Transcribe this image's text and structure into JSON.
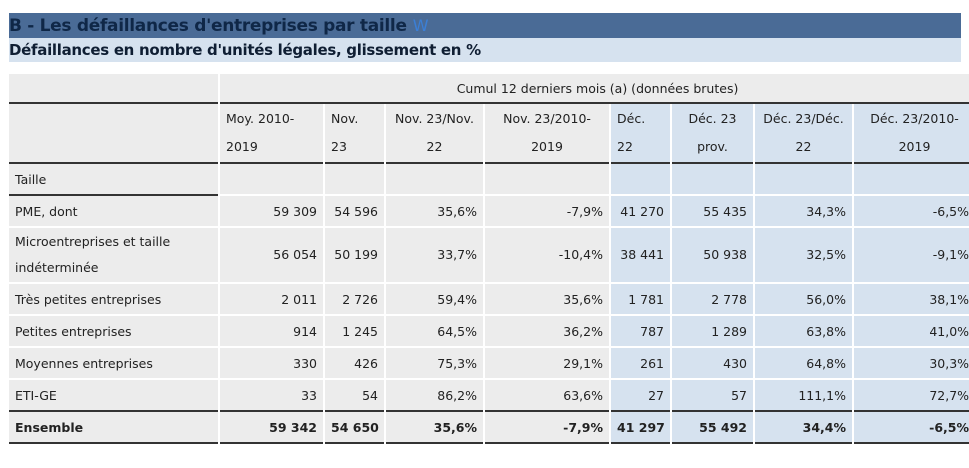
{
  "title": "B - Les défaillances d'entreprises par taille",
  "title_icon": "w-icon",
  "subtitle": "Défaillances en nombre d'unités légales, glissement en %",
  "colors": {
    "title_bg": "#4a6b96",
    "subtitle_bg": "#d6e2ef",
    "cell_bg": "#ececec",
    "highlight_bg": "#d6e2ef"
  },
  "table": {
    "group_header": "Cumul 12 derniers mois (a) (données brutes)",
    "columns": [
      "Moy. 2010-2019",
      "Nov. 23",
      "Nov. 23/Nov. 22",
      "Nov. 23/2010-2019",
      "Déc. 22",
      "Déc. 23 prov.",
      "Déc. 23/Déc. 22",
      "Déc. 23/2010-2019"
    ],
    "row_header": "Taille",
    "rows": [
      {
        "label": "PME, dont",
        "values": [
          "59 309",
          "54 596",
          "35,6%",
          "-7,9%",
          "41 270",
          "55 435",
          "34,3%",
          "-6,5%"
        ]
      },
      {
        "label": "Microentreprises et taille indéterminée",
        "values": [
          "56 054",
          "50 199",
          "33,7%",
          "-10,4%",
          "38 441",
          "50 938",
          "32,5%",
          "-9,1%"
        ]
      },
      {
        "label": "Très petites entreprises",
        "values": [
          "2 011",
          "2 726",
          "59,4%",
          "35,6%",
          "1 781",
          "2 778",
          "56,0%",
          "38,1%"
        ]
      },
      {
        "label": "Petites entreprises",
        "values": [
          "914",
          "1 245",
          "64,5%",
          "36,2%",
          "787",
          "1 289",
          "63,8%",
          "41,0%"
        ]
      },
      {
        "label": "Moyennes entreprises",
        "values": [
          "330",
          "426",
          "75,3%",
          "29,1%",
          "261",
          "430",
          "64,8%",
          "30,3%"
        ]
      },
      {
        "label": "ETI-GE",
        "values": [
          "33",
          "54",
          "86,2%",
          "63,6%",
          "27",
          "57",
          "111,1%",
          "72,7%"
        ]
      },
      {
        "label": "Ensemble",
        "values": [
          "59 342",
          "54 650",
          "35,6%",
          "-7,9%",
          "41 297",
          "55 492",
          "34,4%",
          "-6,5%"
        ]
      }
    ]
  }
}
